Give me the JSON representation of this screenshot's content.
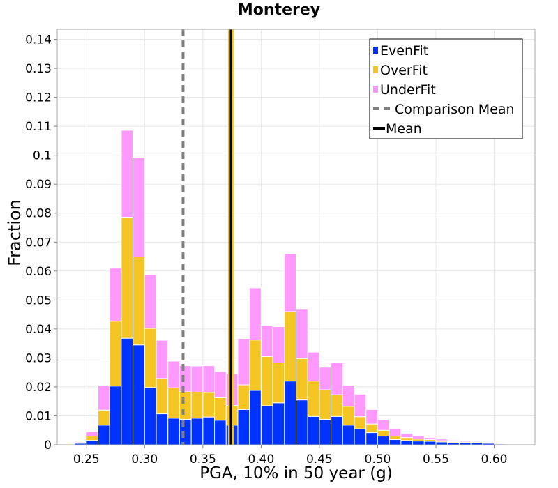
{
  "chart_data": {
    "type": "bar",
    "stacked": true,
    "title": "Monterey",
    "xlabel": "PGA, 10% in 50 year (g)",
    "ylabel": "Fraction",
    "xlim": [
      0.225,
      0.635
    ],
    "ylim": [
      0,
      0.1435
    ],
    "grid": true,
    "legend_position": "top-right",
    "xticks": [
      0.25,
      0.3,
      0.35,
      0.4,
      0.45,
      0.5,
      0.55,
      0.6
    ],
    "xtick_labels": [
      "0.25",
      "0.30",
      "0.35",
      "0.40",
      "0.45",
      "0.50",
      "0.55",
      "0.60"
    ],
    "yticks": [
      0,
      0.01,
      0.02,
      0.03,
      0.04,
      0.05,
      0.06,
      0.07,
      0.08,
      0.09,
      0.1,
      0.11,
      0.12,
      0.13,
      0.14
    ],
    "ytick_labels": [
      "0",
      "0.01",
      "0.02",
      "0.03",
      "0.04",
      "0.05",
      "0.06",
      "0.07",
      "0.08",
      "0.09",
      "0.1",
      "0.11",
      "0.12",
      "0.13",
      "0.14"
    ],
    "bin_width": 0.01,
    "bin_centers": [
      0.235,
      0.245,
      0.255,
      0.265,
      0.275,
      0.285,
      0.295,
      0.305,
      0.315,
      0.325,
      0.335,
      0.345,
      0.355,
      0.365,
      0.375,
      0.385,
      0.395,
      0.405,
      0.415,
      0.425,
      0.435,
      0.445,
      0.455,
      0.465,
      0.475,
      0.485,
      0.495,
      0.505,
      0.515,
      0.525,
      0.535,
      0.545,
      0.555,
      0.565,
      0.575,
      0.585,
      0.595,
      0.605,
      0.615,
      0.625
    ],
    "series": [
      {
        "name": "EvenFit",
        "color": "#0033ff",
        "values": [
          0.0,
          0.0005,
          0.0015,
          0.0068,
          0.0203,
          0.0368,
          0.0345,
          0.0198,
          0.0107,
          0.0092,
          0.0088,
          0.0092,
          0.0096,
          0.0085,
          0.0068,
          0.0122,
          0.0188,
          0.0135,
          0.0145,
          0.022,
          0.0155,
          0.0098,
          0.0088,
          0.0098,
          0.0068,
          0.0055,
          0.0042,
          0.003,
          0.0018,
          0.0015,
          0.0013,
          0.0012,
          0.001,
          0.0008,
          0.0007,
          0.0007,
          0.0005,
          0.0003,
          0.0,
          0.0
        ]
      },
      {
        "name": "OverFit",
        "color": "#f5c524",
        "values": [
          0.0,
          0.0002,
          0.0015,
          0.0052,
          0.0224,
          0.0418,
          0.0304,
          0.0204,
          0.0122,
          0.0105,
          0.0095,
          0.009,
          0.0085,
          0.0078,
          0.0068,
          0.0085,
          0.0174,
          0.017,
          0.0138,
          0.024,
          0.0143,
          0.0122,
          0.0102,
          0.0075,
          0.0065,
          0.0042,
          0.003,
          0.002,
          0.0012,
          0.001,
          0.0007,
          0.0006,
          0.0004,
          0.0003,
          0.0003,
          0.0003,
          0.0003,
          0.0002,
          0.0002,
          0.0
        ]
      },
      {
        "name": "UnderFit",
        "color": "#ff99ff",
        "values": [
          0.0002,
          0.0003,
          0.0015,
          0.0085,
          0.0183,
          0.03,
          0.0344,
          0.0186,
          0.0132,
          0.0092,
          0.009,
          0.009,
          0.0092,
          0.009,
          0.011,
          0.016,
          0.018,
          0.0108,
          0.0125,
          0.02,
          0.0172,
          0.01,
          0.0078,
          0.011,
          0.0073,
          0.0078,
          0.005,
          0.0038,
          0.0025,
          0.0015,
          0.001,
          0.0007,
          0.0006,
          0.0005,
          0.0004,
          0.0003,
          0.0002,
          0.0002,
          0.0001,
          0.0001
        ]
      }
    ],
    "vlines": [
      {
        "name": "Comparison Mean",
        "x": 0.333,
        "color": "#808080",
        "style": "dashed"
      },
      {
        "name": "Mean",
        "x": 0.374,
        "color": "#000000",
        "style": "solid",
        "highlight": "#f5c524"
      }
    ]
  }
}
